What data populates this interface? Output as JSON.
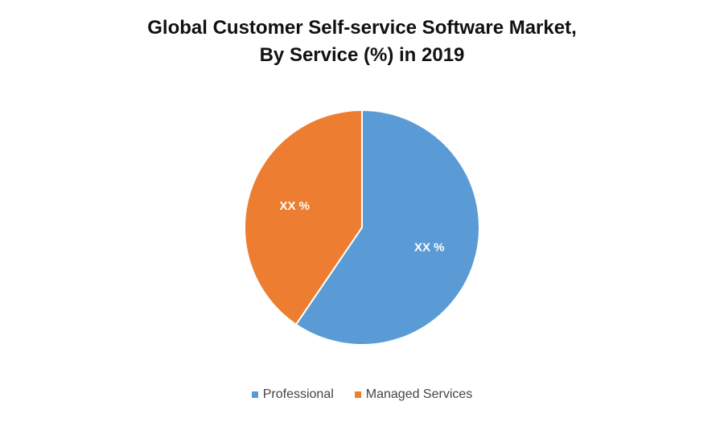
{
  "chart_data": {
    "type": "pie",
    "title": "Global Customer Self-service Software Market,",
    "subtitle": "By Service (%) in 2019",
    "categories": [
      "Professional",
      "Managed Services"
    ],
    "values": [
      59.5,
      40.5
    ],
    "data_labels": [
      "XX %",
      "XX %"
    ],
    "colors": [
      "#5B9BD5",
      "#ED7D31"
    ],
    "start_angle_deg": 0,
    "direction": "clockwise",
    "legend_position": "bottom"
  }
}
